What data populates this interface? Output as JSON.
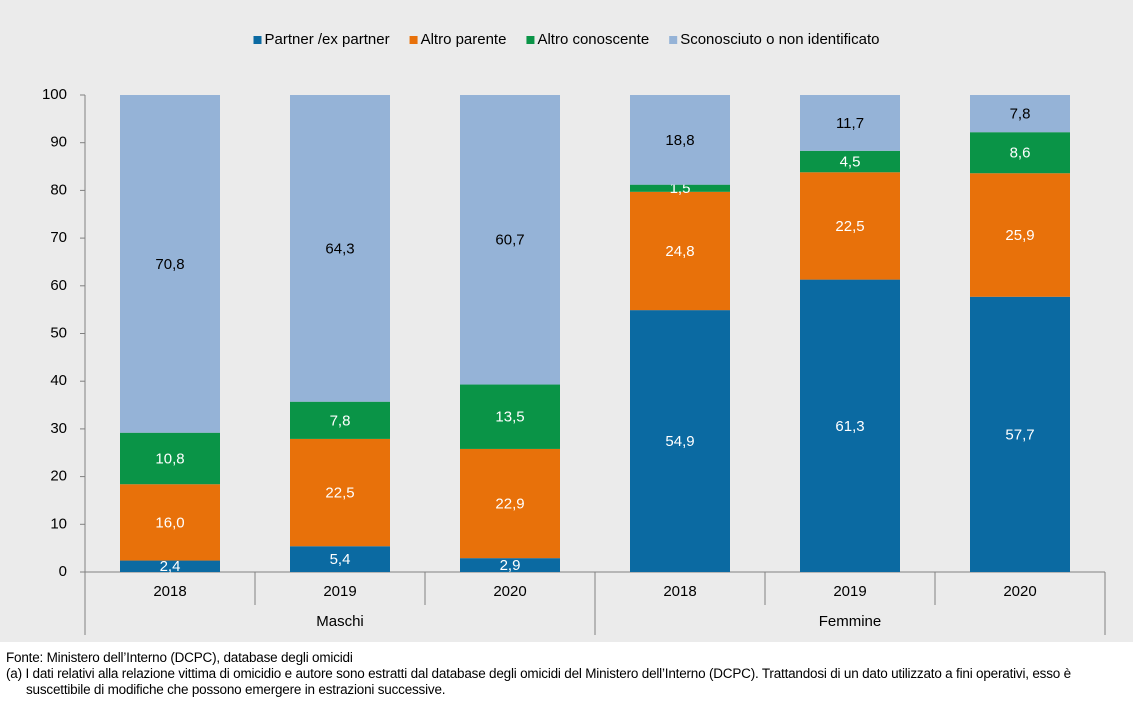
{
  "chart_data": {
    "type": "stacked-bar",
    "categories": [
      "2018",
      "2019",
      "2020",
      "2018",
      "2019",
      "2020"
    ],
    "groups": [
      "Maschi",
      "Femmine"
    ],
    "series": [
      {
        "name": "Partner /ex partner",
        "color": "#0b6aa2",
        "label_color": "#ffffff",
        "values": [
          2.4,
          5.4,
          2.9,
          54.9,
          61.3,
          57.7
        ],
        "value_labels": [
          "2,4",
          "5,4",
          "2,9",
          "54,9",
          "61,3",
          "57,7"
        ]
      },
      {
        "name": "Altro parente",
        "color": "#e8710a",
        "label_color": "#ffffff",
        "values": [
          16.0,
          22.5,
          22.9,
          24.8,
          22.5,
          25.9
        ],
        "value_labels": [
          "16,0",
          "22,5",
          "22,9",
          "24,8",
          "22,5",
          "25,9"
        ]
      },
      {
        "name": "Altro conoscente",
        "color": "#0a9447",
        "label_color": "#ffffff",
        "values": [
          10.8,
          7.8,
          13.5,
          1.5,
          4.5,
          8.6
        ],
        "value_labels": [
          "10,8",
          "7,8",
          "13,5",
          "1,5",
          "4,5",
          "8,6"
        ]
      },
      {
        "name": "Sconosciuto o non identificato",
        "color": "#95b3d7",
        "label_color": "#000000",
        "values": [
          70.8,
          64.3,
          60.7,
          18.8,
          11.7,
          7.8
        ],
        "value_labels": [
          "70,8",
          "64,3",
          "60,7",
          "18,8",
          "11,7",
          "7,8"
        ]
      }
    ],
    "ylim": [
      0,
      100
    ],
    "yticks": [
      0,
      10,
      20,
      30,
      40,
      50,
      60,
      70,
      80,
      90,
      100
    ],
    "grid": false,
    "legend": "top"
  },
  "footer": {
    "source": "Fonte: Ministero dell’Interno (DCPC), database degli omicidi",
    "note": "(a) I dati relativi alla relazione vittima di omicidio e autore sono estratti dal database degli omicidi del Ministero dell’Interno (DCPC). Trattandosi di un dato utilizzato a fini operativi, esso è suscettibile di modifiche che possono emergere in estrazioni successive."
  }
}
